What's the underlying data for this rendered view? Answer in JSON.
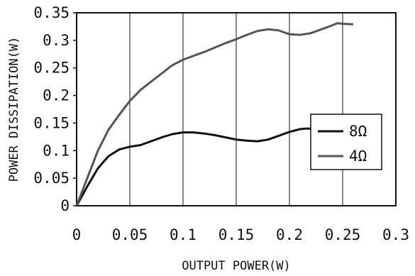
{
  "chart_data": {
    "type": "line",
    "title": "",
    "xlabel": "OUTPUT POWER(W)",
    "ylabel": "POWER DISSIPATION(W)",
    "xlim": [
      0,
      0.3
    ],
    "ylim": [
      0,
      0.35
    ],
    "x_ticks": [
      "0",
      "0.05",
      "0.1",
      "0.15",
      "0.2",
      "0.25",
      "0.3"
    ],
    "y_ticks": [
      "0",
      "0.05",
      "0.1",
      "0.15",
      "0.2",
      "0.25",
      "0.3",
      "0.35"
    ],
    "grid": "vertical",
    "legend_position": "right",
    "series": [
      {
        "name": "8Ω",
        "color": "#111111",
        "points": [
          [
            0,
            0
          ],
          [
            0.01,
            0.035
          ],
          [
            0.02,
            0.068
          ],
          [
            0.03,
            0.09
          ],
          [
            0.04,
            0.102
          ],
          [
            0.05,
            0.107
          ],
          [
            0.06,
            0.11
          ],
          [
            0.07,
            0.117
          ],
          [
            0.08,
            0.124
          ],
          [
            0.09,
            0.13
          ],
          [
            0.1,
            0.133
          ],
          [
            0.11,
            0.133
          ],
          [
            0.12,
            0.131
          ],
          [
            0.13,
            0.128
          ],
          [
            0.14,
            0.124
          ],
          [
            0.15,
            0.12
          ],
          [
            0.16,
            0.118
          ],
          [
            0.17,
            0.117
          ],
          [
            0.18,
            0.12
          ],
          [
            0.19,
            0.127
          ],
          [
            0.2,
            0.134
          ],
          [
            0.21,
            0.139
          ],
          [
            0.215,
            0.14
          ],
          [
            0.22,
            0.14
          ]
        ]
      },
      {
        "name": "4Ω",
        "color": "#555555",
        "points": [
          [
            0,
            0
          ],
          [
            0.01,
            0.05
          ],
          [
            0.02,
            0.1
          ],
          [
            0.03,
            0.138
          ],
          [
            0.04,
            0.165
          ],
          [
            0.05,
            0.19
          ],
          [
            0.06,
            0.21
          ],
          [
            0.07,
            0.225
          ],
          [
            0.08,
            0.24
          ],
          [
            0.09,
            0.255
          ],
          [
            0.1,
            0.265
          ],
          [
            0.11,
            0.272
          ],
          [
            0.12,
            0.279
          ],
          [
            0.13,
            0.287
          ],
          [
            0.14,
            0.295
          ],
          [
            0.15,
            0.302
          ],
          [
            0.16,
            0.31
          ],
          [
            0.17,
            0.317
          ],
          [
            0.18,
            0.32
          ],
          [
            0.19,
            0.318
          ],
          [
            0.2,
            0.311
          ],
          [
            0.21,
            0.31
          ],
          [
            0.22,
            0.313
          ],
          [
            0.23,
            0.32
          ],
          [
            0.24,
            0.327
          ],
          [
            0.245,
            0.331
          ],
          [
            0.25,
            0.33
          ],
          [
            0.26,
            0.329
          ]
        ]
      }
    ]
  }
}
